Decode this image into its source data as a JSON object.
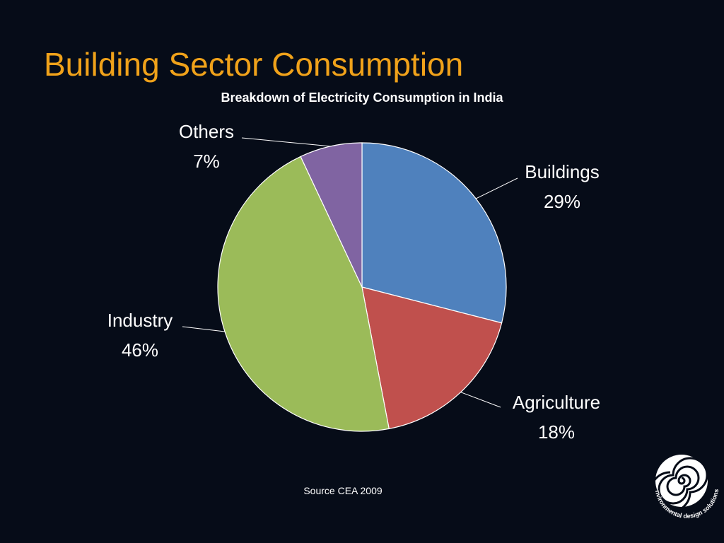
{
  "slide": {
    "title": "Building Sector Consumption",
    "source": "Source CEA 2009",
    "logo_text": "nvironmental design solutions"
  },
  "chart_data": {
    "type": "pie",
    "title": "Breakdown of Electricity Consumption in India",
    "categories": [
      "Buildings",
      "Agriculture",
      "Industry",
      "Others"
    ],
    "values": [
      29,
      18,
      46,
      7
    ],
    "value_labels": [
      "29%",
      "18%",
      "46%",
      "7%"
    ],
    "colors": [
      "#4f81bd",
      "#c0504d",
      "#9bbb59",
      "#8064a2"
    ],
    "legend": "none",
    "start_angle_deg": 0,
    "direction": "clockwise"
  }
}
